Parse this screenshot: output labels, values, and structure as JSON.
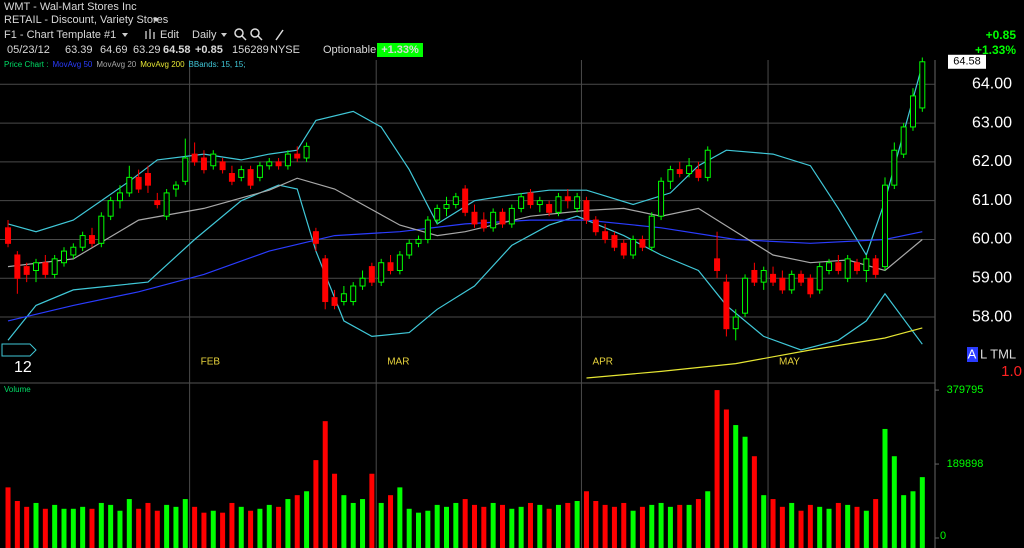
{
  "header": {
    "symbol_line": "WMT - Wal-Mart Stores Inc",
    "industry": "RETAIL - Discount, Variety Stores",
    "template": "F1 - Chart Template #1",
    "edit": "Edit",
    "period": "Daily",
    "date": "05/23/12",
    "change": "+0.85",
    "exchange": "NYSE",
    "optionable": "Optionable",
    "change_pct": "+1.33%"
  },
  "side_panel": {
    "a": "A",
    "rest": "L TML",
    "scale": "1.0"
  },
  "chart_data": [
    {
      "type": "candlestick",
      "legend_title": "Price Chart :",
      "up_color": "#00ff00",
      "down_color": "#ff0000",
      "grid": true,
      "xlim": [
        -0.86,
        99.36
      ],
      "ylim": [
        56.3,
        64.6
      ],
      "xticks": [
        {
          "value": 0,
          "label": "12"
        },
        {
          "value": 20,
          "label": "FEB"
        },
        {
          "value": 40,
          "label": "MAR"
        },
        {
          "value": 62,
          "label": "APR"
        },
        {
          "value": 82,
          "label": "MAY"
        }
      ],
      "yticks": [
        {
          "value": 58,
          "label": "58.00"
        },
        {
          "value": 59,
          "label": "59.00"
        },
        {
          "value": 60,
          "label": "60.00"
        },
        {
          "value": 61,
          "label": "61.00"
        },
        {
          "value": 62,
          "label": "62.00"
        },
        {
          "value": 63,
          "label": "63.00"
        },
        {
          "value": 64,
          "label": "64.00"
        }
      ],
      "candles": [
        [
          60.3,
          60.5,
          59.8,
          59.9
        ],
        [
          59.6,
          59.7,
          58.6,
          59.0
        ],
        [
          59.3,
          59.4,
          58.9,
          59.1
        ],
        [
          59.2,
          59.5,
          58.9,
          59.4
        ],
        [
          59.4,
          59.6,
          59.0,
          59.1
        ],
        [
          59.1,
          59.6,
          59.0,
          59.5
        ],
        [
          59.4,
          59.8,
          59.3,
          59.7
        ],
        [
          59.6,
          59.9,
          59.5,
          59.8
        ],
        [
          59.8,
          60.2,
          59.7,
          60.1
        ],
        [
          60.1,
          60.3,
          59.8,
          59.9
        ],
        [
          59.9,
          60.7,
          59.8,
          60.6
        ],
        [
          60.6,
          61.1,
          60.5,
          61.0
        ],
        [
          61.0,
          61.4,
          60.8,
          61.2
        ],
        [
          61.2,
          61.9,
          61.1,
          61.6
        ],
        [
          61.6,
          61.8,
          61.2,
          61.3
        ],
        [
          61.7,
          61.9,
          61.2,
          61.4
        ],
        [
          61.0,
          61.2,
          60.8,
          60.9
        ],
        [
          60.6,
          61.3,
          60.5,
          61.2
        ],
        [
          61.3,
          61.5,
          61.1,
          61.4
        ],
        [
          61.5,
          62.6,
          61.4,
          62.1
        ],
        [
          62.2,
          62.5,
          61.9,
          62.0
        ],
        [
          62.1,
          62.3,
          61.7,
          61.8
        ],
        [
          61.9,
          62.3,
          61.8,
          62.2
        ],
        [
          62.0,
          62.1,
          61.7,
          61.8
        ],
        [
          61.7,
          61.9,
          61.4,
          61.5
        ],
        [
          61.6,
          61.9,
          61.5,
          61.8
        ],
        [
          61.8,
          61.9,
          61.3,
          61.4
        ],
        [
          61.6,
          62.0,
          61.5,
          61.9
        ],
        [
          61.9,
          62.1,
          61.8,
          62.0
        ],
        [
          62.0,
          62.1,
          61.8,
          61.9
        ],
        [
          61.9,
          62.3,
          61.8,
          62.2
        ],
        [
          62.2,
          62.4,
          62.0,
          62.1
        ],
        [
          62.1,
          62.5,
          62.0,
          62.4
        ],
        [
          60.2,
          60.3,
          59.7,
          59.9
        ],
        [
          59.5,
          59.6,
          58.2,
          58.4
        ],
        [
          58.5,
          58.7,
          58.2,
          58.3
        ],
        [
          58.4,
          58.8,
          58.3,
          58.6
        ],
        [
          58.4,
          58.9,
          58.3,
          58.8
        ],
        [
          58.8,
          59.2,
          58.7,
          59.0
        ],
        [
          59.3,
          59.4,
          58.8,
          58.9
        ],
        [
          58.9,
          59.5,
          58.8,
          59.4
        ],
        [
          59.4,
          59.6,
          59.1,
          59.2
        ],
        [
          59.2,
          59.7,
          59.1,
          59.6
        ],
        [
          59.6,
          60.0,
          59.5,
          59.9
        ],
        [
          59.9,
          60.1,
          59.8,
          60.0
        ],
        [
          60.0,
          60.6,
          59.9,
          60.5
        ],
        [
          60.5,
          60.9,
          60.4,
          60.8
        ],
        [
          60.8,
          61.1,
          60.6,
          60.9
        ],
        [
          60.9,
          61.2,
          60.8,
          61.1
        ],
        [
          61.3,
          61.4,
          60.6,
          60.7
        ],
        [
          60.7,
          60.9,
          60.3,
          60.4
        ],
        [
          60.5,
          60.7,
          60.2,
          60.3
        ],
        [
          60.3,
          60.8,
          60.2,
          60.7
        ],
        [
          60.7,
          60.8,
          60.3,
          60.4
        ],
        [
          60.4,
          60.9,
          60.3,
          60.8
        ],
        [
          60.8,
          61.2,
          60.7,
          61.1
        ],
        [
          61.2,
          61.3,
          60.8,
          60.9
        ],
        [
          60.9,
          61.1,
          60.7,
          61.0
        ],
        [
          60.9,
          61.0,
          60.6,
          60.7
        ],
        [
          60.7,
          61.2,
          60.6,
          61.1
        ],
        [
          61.1,
          61.3,
          60.8,
          61.0
        ],
        [
          60.8,
          61.2,
          60.7,
          61.1
        ],
        [
          61.0,
          61.1,
          60.4,
          60.5
        ],
        [
          60.5,
          60.6,
          60.1,
          60.2
        ],
        [
          60.2,
          60.4,
          59.9,
          60.0
        ],
        [
          60.1,
          60.2,
          59.7,
          59.8
        ],
        [
          59.9,
          60.0,
          59.5,
          59.6
        ],
        [
          59.6,
          60.1,
          59.5,
          60.0
        ],
        [
          60.0,
          60.1,
          59.7,
          59.8
        ],
        [
          59.8,
          60.7,
          59.7,
          60.6
        ],
        [
          60.6,
          61.6,
          60.5,
          61.5
        ],
        [
          61.5,
          61.9,
          61.3,
          61.8
        ],
        [
          61.8,
          62.0,
          61.6,
          61.7
        ],
        [
          61.7,
          62.1,
          61.6,
          61.9
        ],
        [
          61.8,
          62.0,
          61.5,
          61.6
        ],
        [
          61.6,
          62.4,
          61.5,
          62.3
        ],
        [
          59.5,
          60.2,
          59.0,
          59.2
        ],
        [
          58.9,
          59.1,
          57.5,
          57.7
        ],
        [
          57.7,
          58.2,
          57.4,
          58.0
        ],
        [
          58.1,
          59.1,
          58.0,
          59.0
        ],
        [
          59.2,
          59.4,
          58.8,
          58.9
        ],
        [
          58.9,
          59.3,
          58.7,
          59.2
        ],
        [
          59.1,
          59.3,
          58.8,
          58.9
        ],
        [
          59.0,
          59.2,
          58.6,
          58.7
        ],
        [
          58.7,
          59.2,
          58.6,
          59.1
        ],
        [
          59.1,
          59.2,
          58.8,
          58.9
        ],
        [
          59.0,
          59.1,
          58.5,
          58.6
        ],
        [
          58.7,
          59.4,
          58.6,
          59.3
        ],
        [
          59.2,
          59.5,
          59.1,
          59.4
        ],
        [
          59.4,
          59.6,
          59.1,
          59.2
        ],
        [
          59.0,
          59.6,
          58.9,
          59.5
        ],
        [
          59.4,
          59.5,
          59.1,
          59.2
        ],
        [
          59.2,
          59.6,
          58.9,
          59.5
        ],
        [
          59.5,
          59.6,
          59.0,
          59.1
        ],
        [
          59.3,
          61.6,
          59.2,
          61.4
        ],
        [
          61.4,
          62.5,
          61.3,
          62.3
        ],
        [
          62.2,
          63.0,
          62.1,
          62.9
        ],
        [
          62.9,
          63.9,
          62.8,
          63.7
        ],
        [
          63.39,
          64.69,
          63.29,
          64.58
        ]
      ],
      "series": [
        {
          "name": "MovAvg 50",
          "color": "#2a3cff",
          "x": [
            0,
            7,
            14,
            21,
            28,
            35,
            42,
            49,
            56,
            62,
            70,
            78,
            86,
            94,
            98
          ],
          "values": [
            57.9,
            58.3,
            58.65,
            59.1,
            59.7,
            60.1,
            60.2,
            60.4,
            60.5,
            60.5,
            60.3,
            60.0,
            59.9,
            60.0,
            60.2
          ]
        },
        {
          "name": "MovAvg 20",
          "color": "#a8a8a8",
          "x": [
            0,
            7,
            14,
            21,
            28,
            31,
            35,
            42,
            46,
            49,
            56,
            62,
            66,
            70,
            74,
            78,
            82,
            86,
            90,
            94,
            98
          ],
          "values": [
            59.3,
            59.5,
            60.5,
            60.8,
            61.27,
            61.58,
            61.3,
            60.37,
            60.1,
            60.2,
            60.6,
            60.75,
            60.8,
            60.6,
            60.8,
            60.2,
            59.6,
            59.4,
            59.47,
            59.2,
            60.0
          ]
        },
        {
          "name": "MovAvg 200",
          "color": "#e6e633",
          "x": [
            62,
            70,
            78,
            86,
            94,
            98
          ],
          "values": [
            56.43,
            56.6,
            56.8,
            57.15,
            57.46,
            57.72
          ]
        }
      ],
      "bbands": {
        "name": "BBands: 15, 15;",
        "color": "#40c8d8",
        "upper": {
          "x": [
            0,
            3,
            7,
            10,
            13,
            16,
            21,
            25,
            28,
            31,
            33,
            37,
            40,
            43,
            46,
            50,
            54,
            58,
            62,
            67,
            71,
            74,
            77,
            82,
            86,
            89,
            92,
            94,
            98
          ],
          "values": [
            60.4,
            60.2,
            60.5,
            61.0,
            61.5,
            62.05,
            62.2,
            62.05,
            62.2,
            62.3,
            63.07,
            63.3,
            62.9,
            61.8,
            60.4,
            61.0,
            61.15,
            61.27,
            61.27,
            60.9,
            61.2,
            61.9,
            62.3,
            62.2,
            61.9,
            60.8,
            59.6,
            61.0,
            64.5
          ]
        },
        "lower": {
          "x": [
            0,
            3,
            7,
            11,
            15,
            20,
            25,
            29,
            31,
            33,
            36,
            39,
            43,
            46,
            50,
            54,
            58,
            61,
            66,
            70,
            74,
            77,
            81,
            85,
            89,
            92,
            94,
            98
          ],
          "values": [
            57.4,
            58.3,
            58.7,
            58.8,
            58.9,
            60.0,
            61.0,
            61.4,
            61.3,
            59.7,
            57.9,
            57.5,
            57.6,
            58.2,
            58.8,
            59.85,
            60.37,
            60.6,
            60.1,
            59.6,
            59.2,
            58.3,
            57.5,
            57.15,
            57.4,
            57.9,
            58.6,
            57.3
          ]
        }
      }
    },
    {
      "type": "bar",
      "title": "Volume",
      "ylim": [
        0,
        398000
      ],
      "yticks": [
        0,
        189898,
        379795
      ],
      "values": [
        130000,
        95000,
        80000,
        90000,
        75000,
        85000,
        75000,
        75000,
        80000,
        75000,
        90000,
        85000,
        70000,
        100000,
        75000,
        90000,
        70000,
        85000,
        80000,
        100000,
        80000,
        65000,
        70000,
        65000,
        90000,
        80000,
        70000,
        75000,
        85000,
        80000,
        100000,
        110000,
        120000,
        200000,
        300000,
        165000,
        110000,
        90000,
        100000,
        165000,
        90000,
        110000,
        130000,
        75000,
        65000,
        70000,
        85000,
        80000,
        90000,
        100000,
        85000,
        80000,
        90000,
        85000,
        75000,
        80000,
        90000,
        85000,
        75000,
        85000,
        90000,
        95000,
        120000,
        95000,
        85000,
        80000,
        90000,
        70000,
        80000,
        85000,
        90000,
        80000,
        85000,
        85000,
        100000,
        120000,
        379795,
        330000,
        290000,
        260000,
        210000,
        110000,
        100000,
        80000,
        90000,
        70000,
        85000,
        80000,
        75000,
        90000,
        85000,
        80000,
        70000,
        100000,
        280000,
        210000,
        110000,
        120000,
        156289
      ]
    }
  ]
}
